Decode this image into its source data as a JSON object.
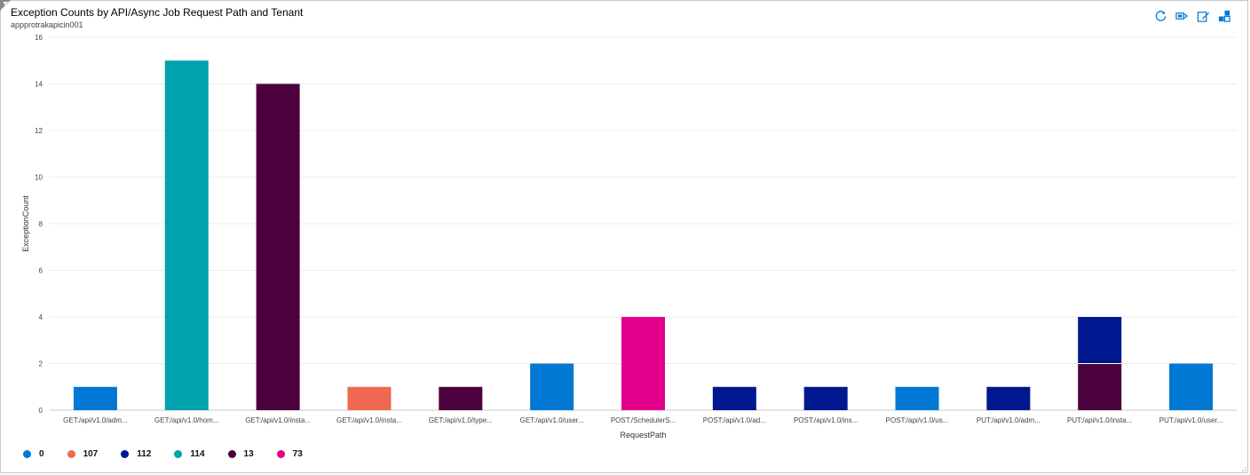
{
  "header": {
    "title": "Exception Counts by API/Async Job Request Path and Tenant",
    "subtitle": "appprotrakapicin001"
  },
  "toolbar": {
    "icons": [
      "refresh-icon",
      "query-icon",
      "edit-icon",
      "pin-icon"
    ],
    "accent": "#0078d4"
  },
  "chart_data": {
    "type": "bar",
    "stacked": true,
    "xlabel": "RequestPath",
    "ylabel": "ExceptionCount",
    "ylim": [
      0,
      16
    ],
    "yticks": [
      0,
      2,
      4,
      6,
      8,
      10,
      12,
      14,
      16
    ],
    "grid": true,
    "legend_position": "bottom-left",
    "categories": [
      "GET:/api/v1.0/adm...",
      "GET:/api/v1.0/hom...",
      "GET:/api/v1.0/insta...",
      "GET:/api/v1.0/insta...",
      "GET:/api/v1.0/type...",
      "GET:/api/v1.0/user...",
      "POST:/SchedulerS...",
      "POST:/api/v1.0/ad...",
      "POST:/api/v1.0/ins...",
      "POST:/api/v1.0/us...",
      "PUT:/api/v1.0/adm...",
      "PUT:/api/v1.0/insta...",
      "PUT:/api/v1.0/user..."
    ],
    "series": [
      {
        "name": "0",
        "color": "#0078d4",
        "values": [
          1,
          0,
          0,
          0,
          0,
          2,
          0,
          0,
          0,
          1,
          0,
          0,
          2
        ]
      },
      {
        "name": "107",
        "color": "#ef6950",
        "values": [
          0,
          0,
          0,
          1,
          0,
          0,
          0,
          0,
          0,
          0,
          0,
          0,
          0
        ]
      },
      {
        "name": "112",
        "color": "#00188f",
        "values": [
          0,
          0,
          0,
          0,
          0,
          0,
          0,
          1,
          1,
          0,
          1,
          2,
          0
        ]
      },
      {
        "name": "114",
        "color": "#00a2ad",
        "values": [
          0,
          15,
          0,
          0,
          0,
          0,
          0,
          0,
          0,
          0,
          0,
          0,
          0
        ]
      },
      {
        "name": "13",
        "color": "#4c003c",
        "values": [
          0,
          0,
          14,
          0,
          1,
          0,
          0,
          0,
          0,
          0,
          0,
          2,
          0
        ]
      },
      {
        "name": "73",
        "color": "#e3008c",
        "values": [
          0,
          0,
          0,
          0,
          0,
          0,
          4,
          0,
          0,
          0,
          0,
          0,
          0
        ]
      }
    ],
    "stack_order": [
      "13",
      "112",
      "0",
      "107",
      "114",
      "73"
    ]
  }
}
